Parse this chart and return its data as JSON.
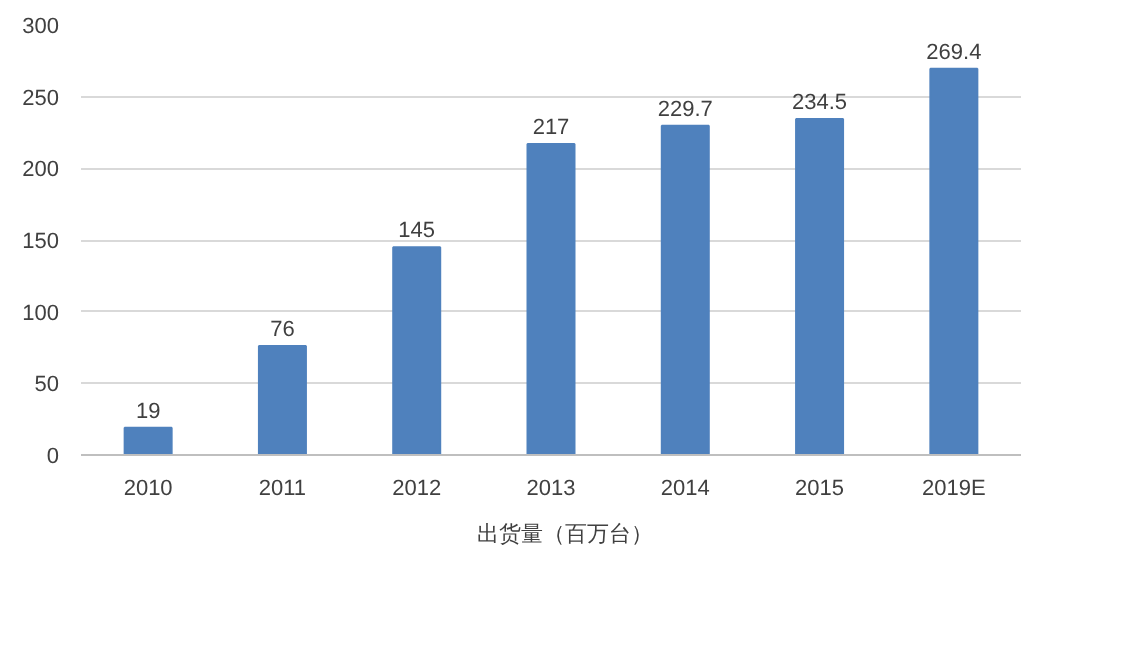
{
  "chart_data": {
    "type": "bar",
    "categories": [
      "2010",
      "2011",
      "2012",
      "2013",
      "2014",
      "2015",
      "2019E"
    ],
    "series": [
      {
        "name": "出货量（百万台）",
        "color": "#4f81bd",
        "values": [
          19,
          76,
          145,
          217,
          229.7,
          234.5,
          269.4
        ]
      }
    ],
    "ylim": [
      0,
      300
    ],
    "yticks": [
      0,
      50,
      100,
      150,
      200,
      250,
      300
    ],
    "grid": "y",
    "legend": "bottom",
    "data_labels": true
  }
}
